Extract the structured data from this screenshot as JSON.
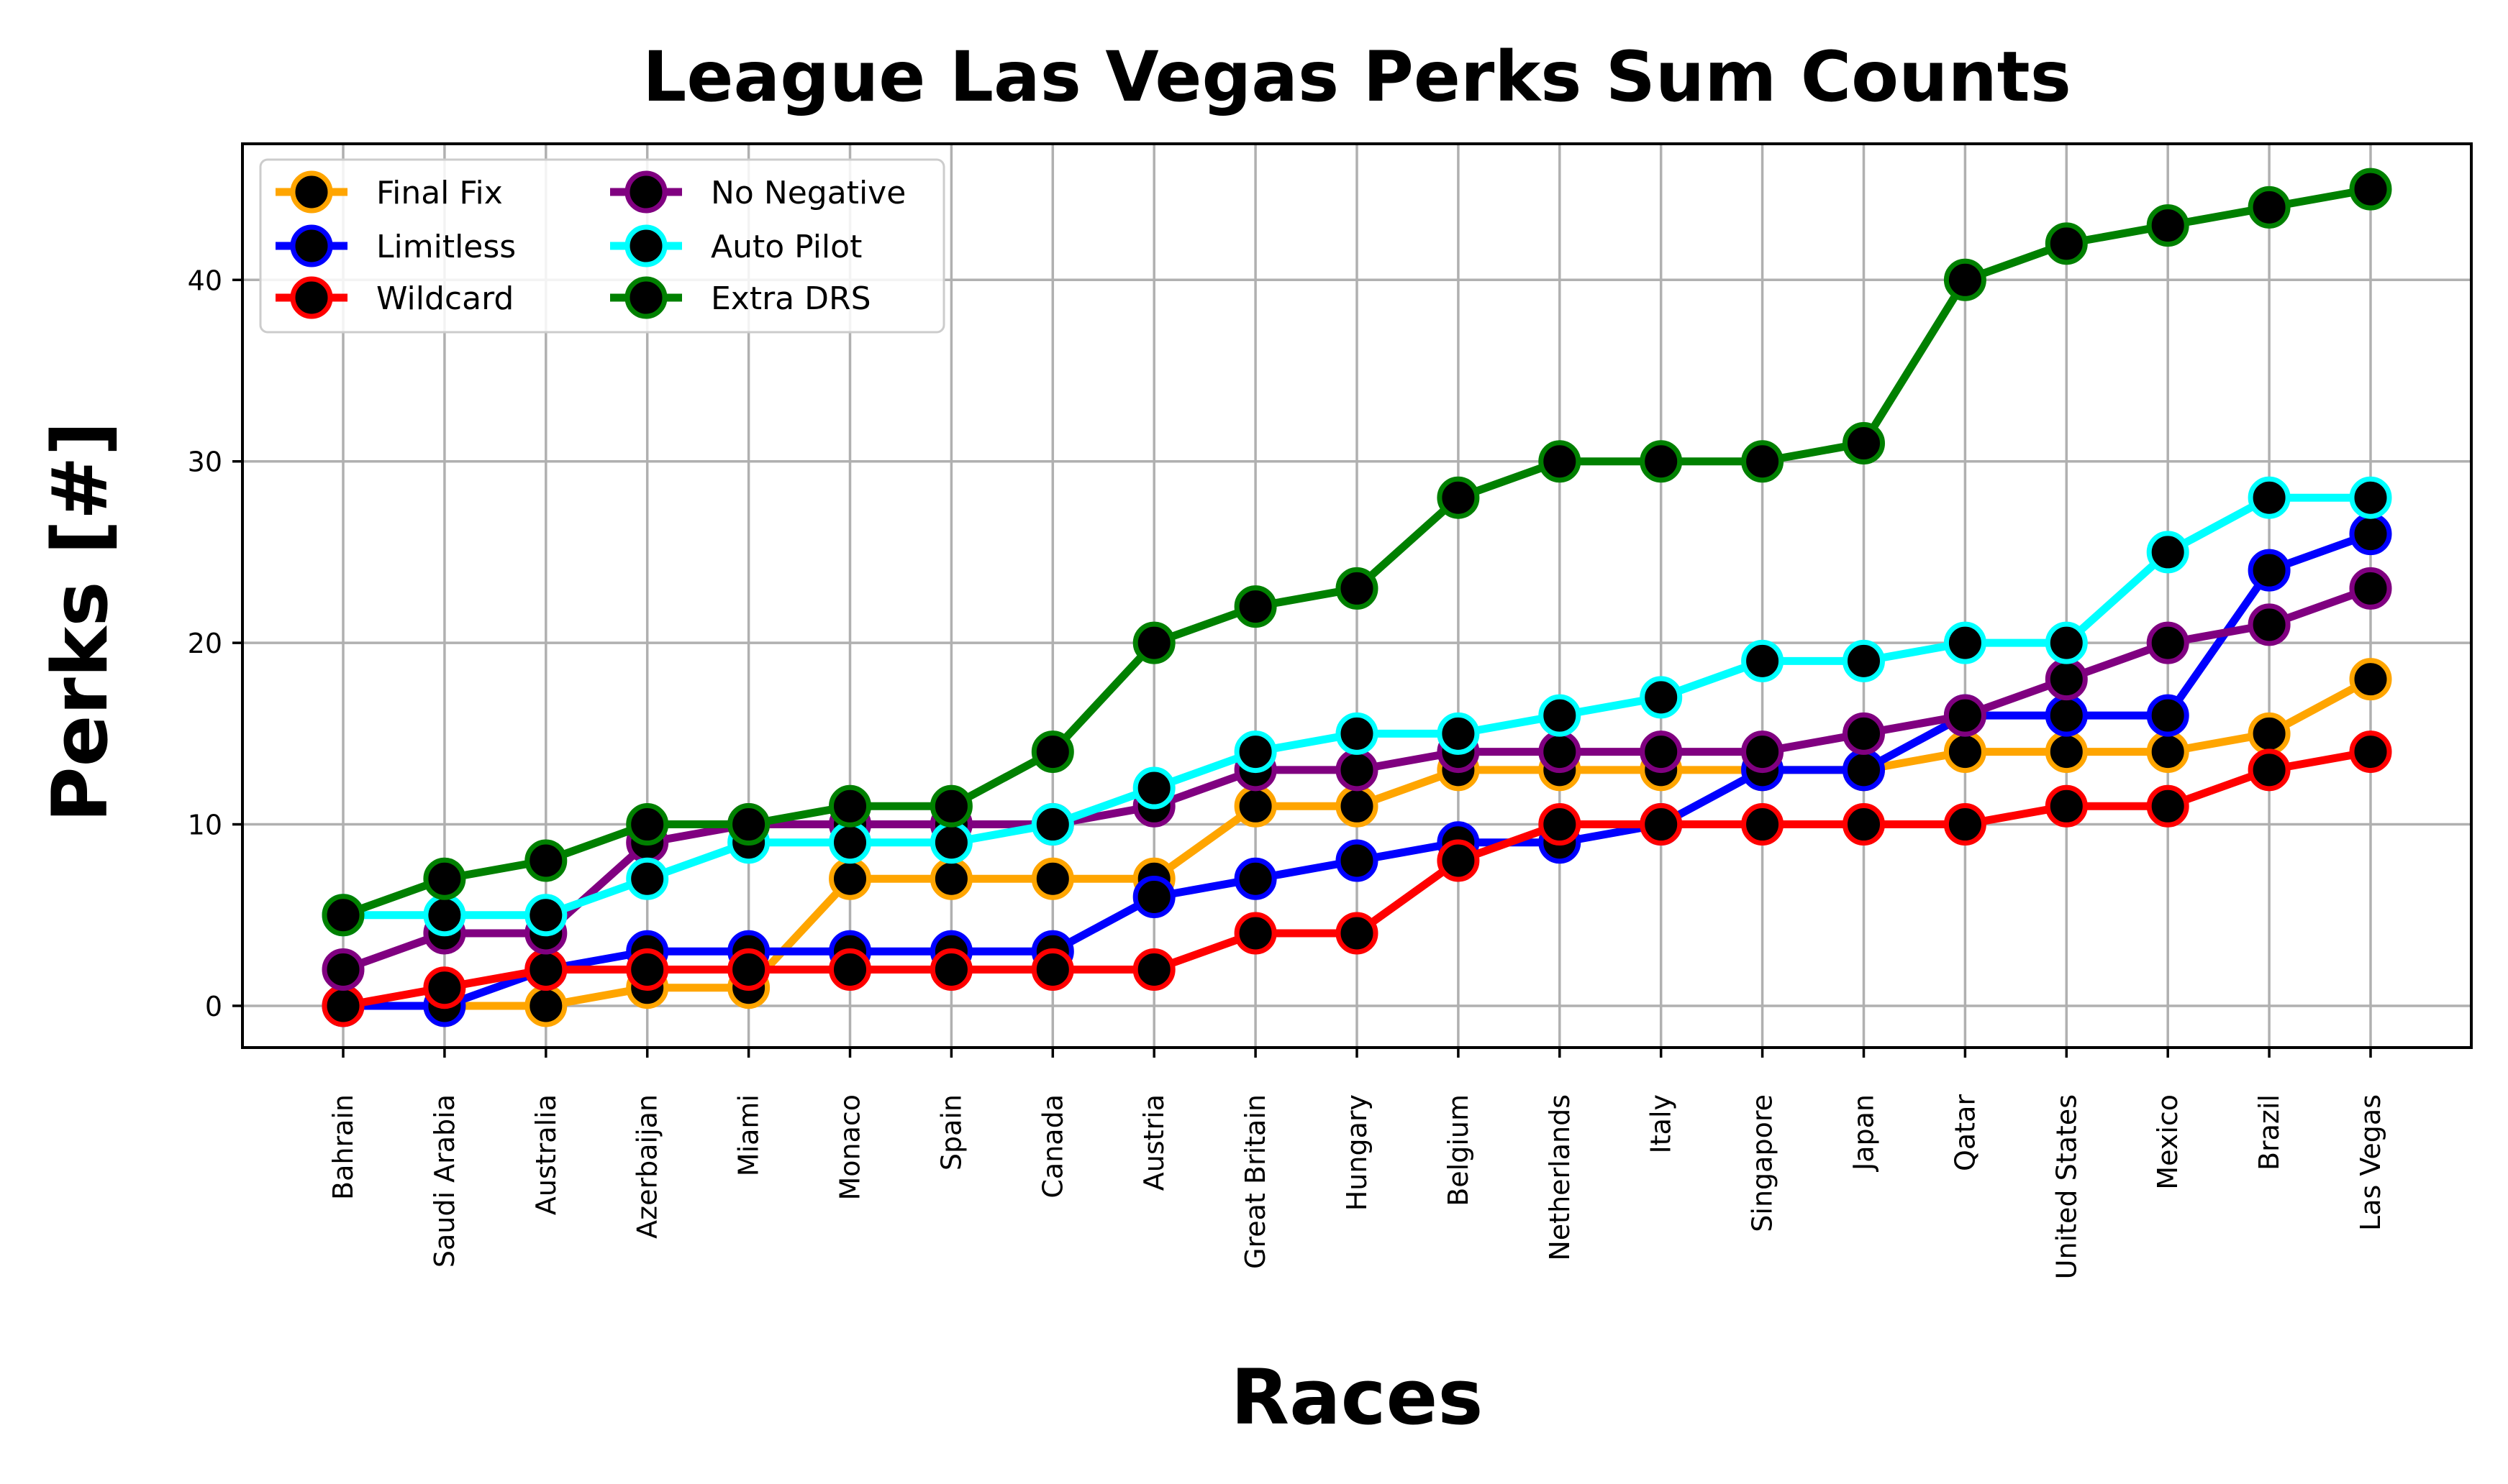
{
  "chart_data": {
    "type": "line",
    "title": "League Las Vegas Perks Sum Counts",
    "xlabel": "Races",
    "ylabel": "Perks [#]",
    "ylim": [
      -2.3,
      47.5
    ],
    "yticks": [
      0,
      10,
      20,
      30,
      40
    ],
    "grid": true,
    "legend_position": "top-left",
    "marker_face_color": "#000000",
    "categories": [
      "Bahrain",
      "Saudi Arabia",
      "Australia",
      "Azerbaijan",
      "Miami",
      "Monaco",
      "Spain",
      "Canada",
      "Austria",
      "Great Britain",
      "Hungary",
      "Belgium",
      "Netherlands",
      "Italy",
      "Singapore",
      "Japan",
      "Qatar",
      "United States",
      "Mexico",
      "Brazil",
      "Las Vegas"
    ],
    "series": [
      {
        "name": "Final Fix",
        "color": "#ffa500",
        "values": [
          0,
          0,
          0,
          1,
          1,
          7,
          7,
          7,
          7,
          11,
          11,
          13,
          13,
          13,
          13,
          13,
          14,
          14,
          14,
          15,
          18
        ]
      },
      {
        "name": "Limitless",
        "color": "#0000ff",
        "values": [
          0,
          0,
          2,
          3,
          3,
          3,
          3,
          3,
          6,
          7,
          8,
          9,
          9,
          10,
          13,
          13,
          16,
          16,
          16,
          24,
          26
        ]
      },
      {
        "name": "Wildcard",
        "color": "#ff0000",
        "values": [
          0,
          1,
          2,
          2,
          2,
          2,
          2,
          2,
          2,
          4,
          4,
          8,
          10,
          10,
          10,
          10,
          10,
          11,
          11,
          13,
          14
        ]
      },
      {
        "name": "No Negative",
        "color": "#800080",
        "values": [
          2,
          4,
          4,
          9,
          10,
          10,
          10,
          10,
          11,
          13,
          13,
          14,
          14,
          14,
          14,
          15,
          16,
          18,
          20,
          21,
          23
        ]
      },
      {
        "name": "Auto Pilot",
        "color": "#00ffff",
        "values": [
          5,
          5,
          5,
          7,
          9,
          9,
          9,
          10,
          12,
          14,
          15,
          15,
          16,
          17,
          19,
          19,
          20,
          20,
          25,
          28,
          28
        ]
      },
      {
        "name": "Extra DRS",
        "color": "#008000",
        "values": [
          5,
          7,
          8,
          10,
          10,
          11,
          11,
          14,
          20,
          22,
          23,
          28,
          30,
          30,
          30,
          31,
          40,
          42,
          43,
          44,
          45
        ]
      }
    ]
  }
}
